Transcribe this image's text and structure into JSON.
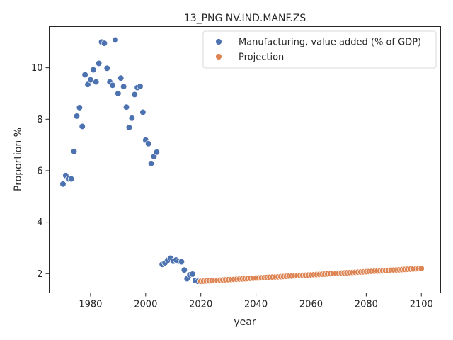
{
  "chart_data": {
    "type": "scatter",
    "title": "13_PNG NV.IND.MANF.ZS",
    "xlabel": "year",
    "ylabel": "Proportion %",
    "xlim": [
      1965,
      2107
    ],
    "ylim": [
      1.25,
      11.6
    ],
    "xticks": [
      1980,
      2000,
      2020,
      2040,
      2060,
      2080,
      2100
    ],
    "yticks": [
      2,
      4,
      6,
      8,
      10
    ],
    "grid": false,
    "legend_position": "top-right",
    "series": [
      {
        "name": "Manufacturing, value added (% of GDP)",
        "color": "#4c72b0",
        "x": [
          1970,
          1971,
          1972,
          1973,
          1974,
          1975,
          1976,
          1977,
          1978,
          1979,
          1980,
          1981,
          1982,
          1983,
          1984,
          1985,
          1986,
          1987,
          1988,
          1989,
          1990,
          1991,
          1992,
          1993,
          1994,
          1995,
          1996,
          1997,
          1998,
          1999,
          2000,
          2001,
          2002,
          2003,
          2004,
          2006,
          2007,
          2008,
          2009,
          2010,
          2011,
          2012,
          2013,
          2014,
          2015,
          2016,
          2017,
          2018,
          2019
        ],
        "y": [
          5.48,
          5.81,
          5.68,
          5.68,
          6.75,
          8.12,
          8.45,
          7.72,
          9.73,
          9.35,
          9.53,
          9.92,
          9.45,
          10.17,
          11.0,
          10.95,
          9.98,
          9.45,
          9.32,
          11.08,
          9.0,
          9.6,
          9.27,
          8.47,
          7.68,
          8.04,
          8.96,
          9.23,
          9.28,
          8.27,
          7.19,
          7.05,
          6.28,
          6.55,
          6.72,
          2.36,
          2.42,
          2.52,
          2.6,
          2.48,
          2.53,
          2.48,
          2.46,
          2.14,
          1.8,
          1.95,
          1.98,
          1.73,
          1.7
        ]
      },
      {
        "name": "Projection",
        "color": "#dd8452",
        "x_start": 2020,
        "x_end": 2100,
        "y_start": 1.7,
        "y_end": 2.2
      }
    ]
  }
}
